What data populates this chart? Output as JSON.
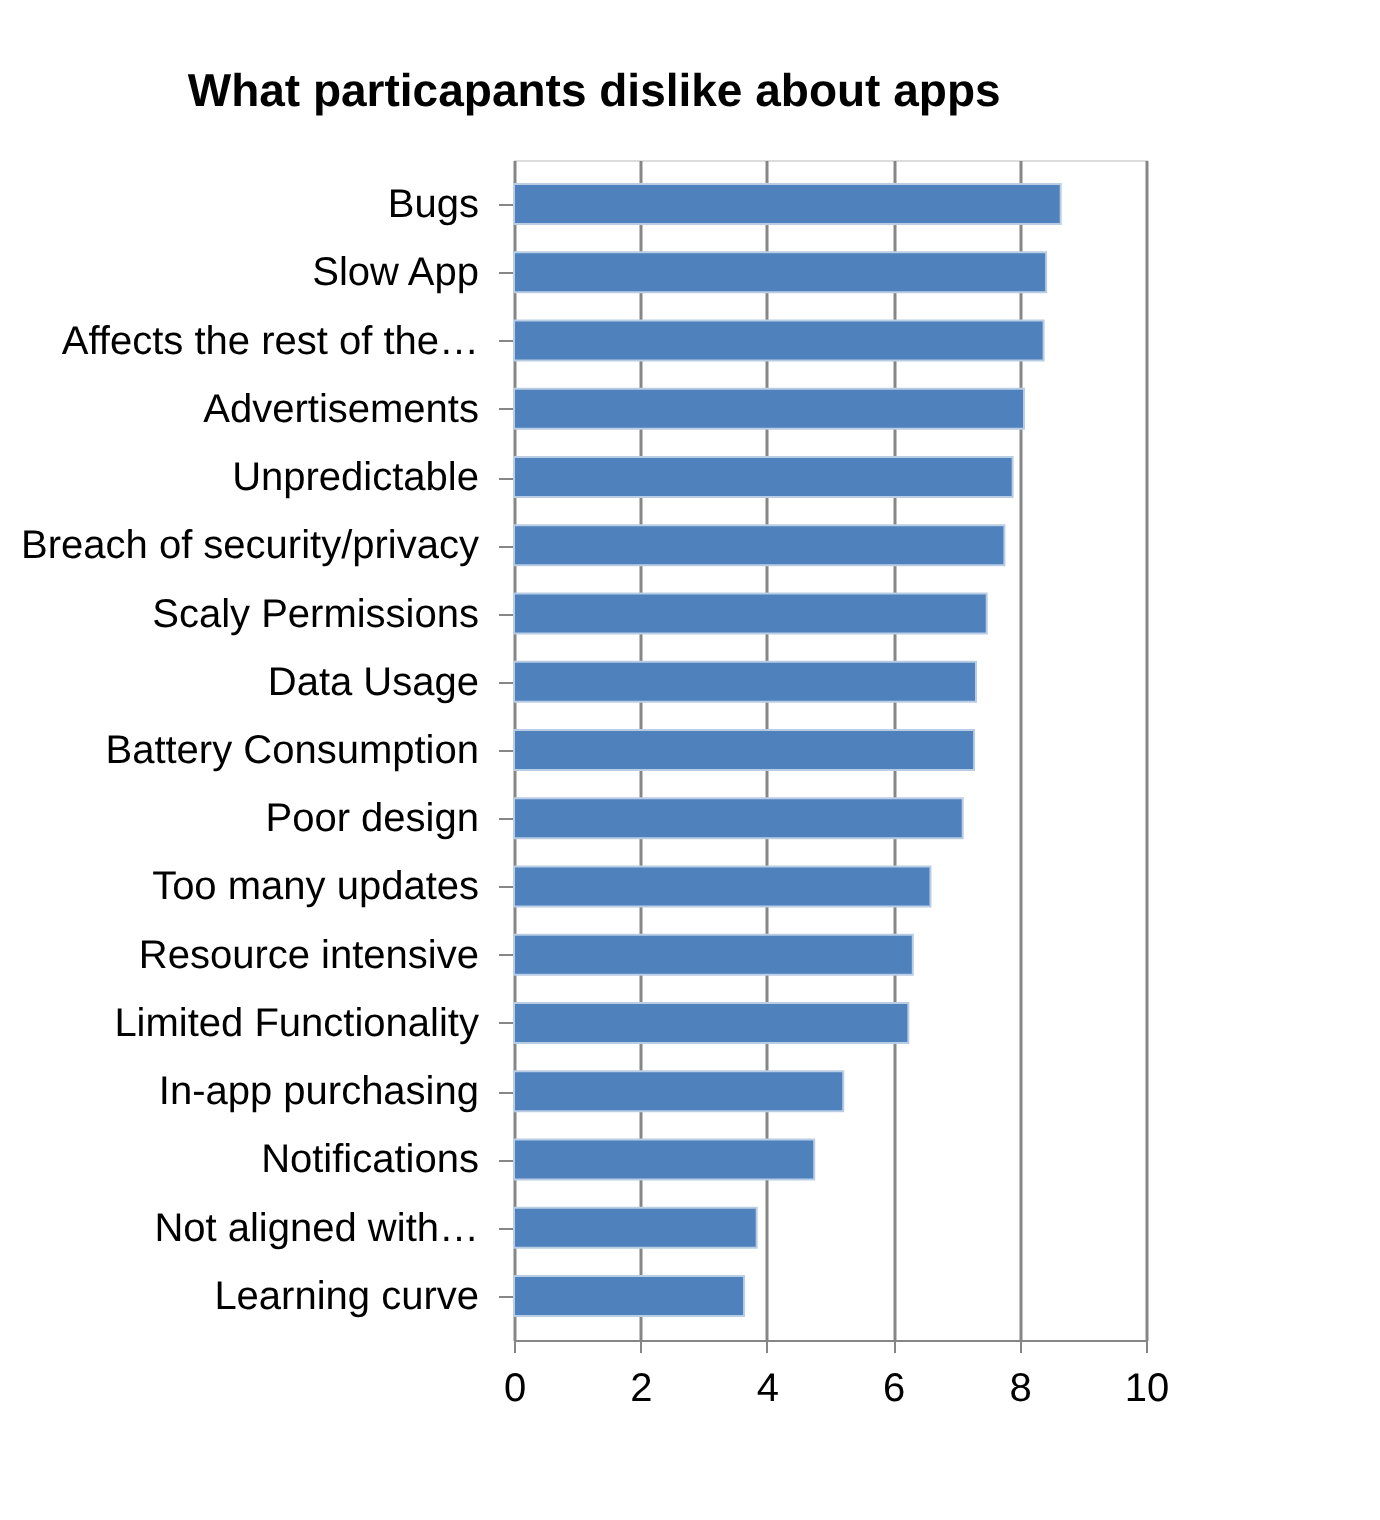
{
  "chart_data": {
    "type": "bar",
    "orientation": "horizontal",
    "title": "What particapants dislike about apps",
    "categories": [
      "Bugs",
      "Slow App",
      "Affects the rest of the…",
      "Advertisements",
      "Unpredictable",
      "Breach of security/privacy",
      "Scaly Permissions",
      "Data Usage",
      "Battery Consumption",
      "Poor design",
      "Too many updates",
      "Resource intensive",
      "Limited Functionality",
      "In-app purchasing",
      "Notifications",
      "Not aligned with…",
      "Learning curve"
    ],
    "values": [
      8.65,
      8.42,
      8.38,
      8.07,
      7.89,
      7.76,
      7.48,
      7.31,
      7.28,
      7.1,
      6.59,
      6.31,
      6.24,
      5.21,
      4.75,
      3.84,
      3.64
    ],
    "color": "#4f81bd",
    "xlim": [
      0,
      10
    ],
    "xticks": [
      0,
      2,
      4,
      6,
      8,
      10
    ],
    "grid": "x"
  }
}
